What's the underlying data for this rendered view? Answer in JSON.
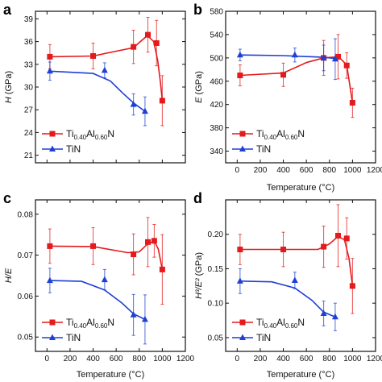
{
  "colors": {
    "tialn": "#e41a1c",
    "tin": "#1f3fd6",
    "axis": "#111111"
  },
  "chart_data": [
    {
      "panel": "a",
      "type": "scatter",
      "xlabel": "Temperature (°C)",
      "ylabel_parts": {
        "main": "H",
        "unit": " (GPa)"
      },
      "xlim": [
        -100,
        1200
      ],
      "ylim": [
        20,
        40
      ],
      "xticks": [
        0,
        200,
        400,
        600,
        800,
        1000,
        1200
      ],
      "yticks": [
        21,
        24,
        27,
        30,
        33,
        36,
        39
      ],
      "show_xticklabels": false,
      "legend": {
        "placement": "bottom-left",
        "tialn": {
          "t1": "Ti",
          "s1": "0.40",
          "t2": "Al",
          "s2": "0.60",
          "t3": "N"
        },
        "tin": "TiN"
      },
      "series": [
        {
          "key": "tialn",
          "marker": "square",
          "x": [
            25,
            400,
            750,
            875,
            950,
            1000
          ],
          "y": [
            34.0,
            34.1,
            35.3,
            36.9,
            35.8,
            28.2
          ],
          "err": [
            1.6,
            1.7,
            2.2,
            2.3,
            3.0,
            3.3
          ],
          "curve": [
            [
              25,
              34.0
            ],
            [
              400,
              34.1
            ],
            [
              750,
              35.2
            ],
            [
              870,
              36.8
            ],
            [
              925,
              36.0
            ],
            [
              960,
              33.5
            ],
            [
              985,
              30.5
            ],
            [
              1000,
              28.2
            ]
          ]
        },
        {
          "key": "tin",
          "marker": "triangle",
          "x": [
            25,
            500,
            750,
            850
          ],
          "y": [
            32.1,
            32.2,
            27.7,
            26.8
          ],
          "err": [
            1.2,
            1.0,
            1.4,
            1.9
          ],
          "curve": [
            [
              25,
              32.1
            ],
            [
              400,
              31.8
            ],
            [
              550,
              30.8
            ],
            [
              650,
              29.3
            ],
            [
              750,
              27.9
            ],
            [
              850,
              26.8
            ]
          ]
        }
      ]
    },
    {
      "panel": "b",
      "type": "scatter",
      "xlabel": "Temperature (°C)",
      "ylabel_parts": {
        "main": "E",
        "unit": " (GPa)"
      },
      "xlim": [
        -100,
        1200
      ],
      "ylim": [
        320,
        580
      ],
      "xticks": [
        0,
        200,
        400,
        600,
        800,
        1000,
        1200
      ],
      "yticks": [
        340,
        380,
        420,
        460,
        500,
        540,
        580
      ],
      "show_xticklabels": true,
      "legend": {
        "placement": "bottom-left",
        "tialn": {
          "t1": "Ti",
          "s1": "0.40",
          "t2": "Al",
          "s2": "0.60",
          "t3": "N"
        },
        "tin": "TiN"
      },
      "series": [
        {
          "key": "tialn",
          "marker": "square",
          "x": [
            25,
            400,
            750,
            875,
            950,
            1000
          ],
          "y": [
            470,
            471,
            500,
            502,
            487,
            423
          ],
          "err": [
            18,
            20,
            30,
            38,
            22,
            25
          ],
          "curve": [
            [
              25,
              470
            ],
            [
              400,
              474
            ],
            [
              600,
              492
            ],
            [
              750,
              500
            ],
            [
              880,
              502
            ],
            [
              950,
              488
            ],
            [
              1000,
              423
            ]
          ]
        },
        {
          "key": "tin",
          "marker": "triangle",
          "x": [
            25,
            500,
            750,
            850
          ],
          "y": [
            505,
            505,
            500,
            498
          ],
          "err": [
            10,
            12,
            22,
            35
          ],
          "curve": [
            [
              25,
              505
            ],
            [
              400,
              504
            ],
            [
              750,
              501
            ],
            [
              850,
              499
            ]
          ]
        }
      ]
    },
    {
      "panel": "c",
      "type": "scatter",
      "xlabel": "Temperature (°C)",
      "ylabel_parts": {
        "main": "H/E",
        "unit": ""
      },
      "xlim": [
        -100,
        1200
      ],
      "ylim": [
        0.0465,
        0.0835
      ],
      "xticks": [
        0,
        200,
        400,
        600,
        800,
        1000,
        1200
      ],
      "yticks": [
        0.05,
        0.06,
        0.07,
        0.08
      ],
      "show_xticklabels": true,
      "legend": {
        "placement": "bottom-left",
        "tialn": {
          "t1": "Ti",
          "s1": "0.40",
          "t2": "Al",
          "s2": "0.60",
          "t3": "N"
        },
        "tin": "TiN"
      },
      "series": [
        {
          "key": "tialn",
          "marker": "square",
          "x": [
            25,
            400,
            750,
            875,
            930,
            1000
          ],
          "y": [
            0.0722,
            0.0722,
            0.0702,
            0.0732,
            0.0735,
            0.0665
          ],
          "err": [
            0.0042,
            0.0045,
            0.005,
            0.006,
            0.004,
            0.0085
          ],
          "curve": [
            [
              25,
              0.0722
            ],
            [
              400,
              0.0721
            ],
            [
              700,
              0.0706
            ],
            [
              800,
              0.0708
            ],
            [
              875,
              0.0728
            ],
            [
              930,
              0.0734
            ],
            [
              965,
              0.0715
            ],
            [
              1000,
              0.0665
            ]
          ]
        },
        {
          "key": "tin",
          "marker": "triangle",
          "x": [
            25,
            500,
            750,
            850
          ],
          "y": [
            0.0638,
            0.064,
            0.0554,
            0.0543
          ],
          "err": [
            0.003,
            0.0025,
            0.005,
            0.006
          ],
          "curve": [
            [
              25,
              0.0638
            ],
            [
              300,
              0.0636
            ],
            [
              500,
              0.0615
            ],
            [
              650,
              0.0583
            ],
            [
              750,
              0.0557
            ],
            [
              850,
              0.0543
            ]
          ]
        }
      ]
    },
    {
      "panel": "d",
      "type": "scatter",
      "xlabel": "Temperature (°C)",
      "ylabel_parts": {
        "main": "H³/E²",
        "unit": " (GPa)"
      },
      "xlim": [
        -100,
        1200
      ],
      "ylim": [
        0.03,
        0.25
      ],
      "xticks": [
        0,
        200,
        400,
        600,
        800,
        1000,
        1200
      ],
      "yticks": [
        0.05,
        0.1,
        0.15,
        0.2
      ],
      "show_xticklabels": true,
      "legend": {
        "placement": "bottom-left",
        "tialn": {
          "t1": "Ti",
          "s1": "0.40",
          "t2": "Al",
          "s2": "0.60",
          "t3": "N"
        },
        "tin": "TiN"
      },
      "series": [
        {
          "key": "tialn",
          "marker": "square",
          "x": [
            25,
            400,
            750,
            875,
            950,
            1000
          ],
          "y": [
            0.178,
            0.178,
            0.182,
            0.198,
            0.194,
            0.125
          ],
          "err": [
            0.022,
            0.025,
            0.03,
            0.045,
            0.03,
            0.04
          ],
          "curve": [
            [
              25,
              0.178
            ],
            [
              400,
              0.178
            ],
            [
              700,
              0.178
            ],
            [
              800,
              0.186
            ],
            [
              875,
              0.197
            ],
            [
              930,
              0.192
            ],
            [
              970,
              0.165
            ],
            [
              1000,
              0.125
            ]
          ]
        },
        {
          "key": "tin",
          "marker": "triangle",
          "x": [
            25,
            500,
            750,
            850
          ],
          "y": [
            0.132,
            0.133,
            0.085,
            0.08
          ],
          "err": [
            0.018,
            0.012,
            0.018,
            0.02
          ],
          "curve": [
            [
              25,
              0.132
            ],
            [
              300,
              0.131
            ],
            [
              500,
              0.122
            ],
            [
              650,
              0.104
            ],
            [
              750,
              0.087
            ],
            [
              850,
              0.08
            ]
          ]
        }
      ]
    }
  ]
}
